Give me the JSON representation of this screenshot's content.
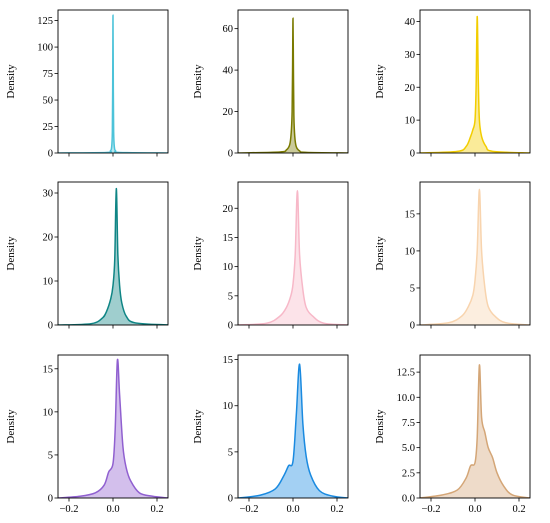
{
  "chart_data": [
    {
      "type": "area",
      "ylabel": "Density",
      "xlim": [
        -0.25,
        0.25
      ],
      "ylim": [
        0,
        135
      ],
      "yticks": [
        0,
        25,
        50,
        75,
        100,
        125
      ],
      "xticks": [
        -0.2,
        0.0,
        0.2
      ],
      "xtick_labels": [],
      "color": "#4cc3d9",
      "x": [
        -0.25,
        -0.03,
        -0.012,
        -0.006,
        -0.003,
        -0.0015,
        0,
        0.0015,
        0.003,
        0.006,
        0.012,
        0.03,
        0.25
      ],
      "y": [
        0,
        0.5,
        2,
        6,
        20,
        60,
        130,
        60,
        20,
        6,
        2,
        0.5,
        0
      ]
    },
    {
      "type": "area",
      "ylabel": "Density",
      "xlim": [
        -0.25,
        0.25
      ],
      "ylim": [
        0,
        69
      ],
      "yticks": [
        0,
        20,
        40,
        60
      ],
      "xticks": [
        -0.2,
        0.0,
        0.2
      ],
      "xtick_labels": [],
      "color": "#7a7a00",
      "x": [
        -0.25,
        -0.06,
        -0.03,
        -0.015,
        -0.008,
        -0.004,
        -0.002,
        0,
        0.002,
        0.004,
        0.008,
        0.015,
        0.03,
        0.06,
        0.25
      ],
      "y": [
        0,
        0.5,
        1.5,
        4,
        10,
        20,
        40,
        65,
        40,
        18,
        8,
        3,
        1,
        0.3,
        0
      ]
    },
    {
      "type": "area",
      "ylabel": "Density",
      "xlim": [
        -0.25,
        0.25
      ],
      "ylim": [
        0,
        43.5
      ],
      "yticks": [
        0,
        10,
        20,
        30,
        40
      ],
      "xticks": [
        -0.2,
        0.0,
        0.2
      ],
      "xtick_labels": [],
      "color": "#f2cd00",
      "x": [
        -0.25,
        -0.08,
        -0.04,
        -0.02,
        -0.01,
        0,
        0.005,
        0.01,
        0.015,
        0.02,
        0.03,
        0.05,
        0.08,
        0.25
      ],
      "y": [
        0,
        0.5,
        2,
        5,
        7,
        10,
        20,
        41.5,
        22,
        10,
        5,
        2,
        0.5,
        0
      ]
    },
    {
      "type": "area",
      "ylabel": "Density",
      "xlim": [
        -0.25,
        0.25
      ],
      "ylim": [
        0,
        32.5
      ],
      "yticks": [
        0,
        10,
        20,
        30
      ],
      "xticks": [
        -0.2,
        0.0,
        0.2
      ],
      "xtick_labels": [],
      "color": "#0f8585",
      "x": [
        -0.25,
        -0.1,
        -0.05,
        -0.03,
        -0.01,
        0,
        0.008,
        0.015,
        0.022,
        0.03,
        0.04,
        0.06,
        0.1,
        0.25
      ],
      "y": [
        0,
        0.3,
        1.5,
        3,
        6,
        9,
        15,
        31,
        16,
        9,
        5,
        2,
        0.5,
        0
      ]
    },
    {
      "type": "area",
      "ylabel": "Density",
      "xlim": [
        -0.25,
        0.25
      ],
      "ylim": [
        0,
        24.5
      ],
      "yticks": [
        0,
        5,
        10,
        15,
        20
      ],
      "xticks": [
        -0.2,
        0.0,
        0.2
      ],
      "xtick_labels": [],
      "color": "#f7b8c8",
      "x": [
        -0.25,
        -0.12,
        -0.06,
        -0.03,
        -0.01,
        0,
        0.01,
        0.02,
        0.03,
        0.045,
        0.06,
        0.09,
        0.14,
        0.25
      ],
      "y": [
        0,
        0.3,
        1.5,
        3,
        5,
        7,
        12,
        23,
        12,
        6,
        3,
        1.5,
        0.3,
        0
      ]
    },
    {
      "type": "area",
      "ylabel": "Density",
      "xlim": [
        -0.25,
        0.25
      ],
      "ylim": [
        0,
        19.3
      ],
      "yticks": [
        0,
        5,
        10,
        15
      ],
      "xticks": [
        -0.2,
        0.0,
        0.2
      ],
      "xtick_labels": [],
      "color": "#f8d4ae",
      "x": [
        -0.25,
        -0.12,
        -0.06,
        -0.03,
        -0.01,
        0,
        0.01,
        0.02,
        0.03,
        0.045,
        0.06,
        0.09,
        0.14,
        0.25
      ],
      "y": [
        0,
        0.3,
        1.2,
        2.5,
        4,
        6,
        10,
        18.3,
        10,
        5,
        2.5,
        1.2,
        0.3,
        0
      ]
    },
    {
      "type": "area",
      "ylabel": "Density",
      "xlim": [
        -0.25,
        0.25
      ],
      "ylim": [
        0,
        16.6
      ],
      "yticks": [
        0,
        5,
        10,
        15
      ],
      "xticks": [
        -0.2,
        0.0,
        0.2
      ],
      "xtick_labels": [
        "−0.2",
        "0.0",
        "0.2"
      ],
      "color": "#9060d0",
      "x": [
        -0.25,
        -0.15,
        -0.08,
        -0.04,
        -0.02,
        0,
        0.01,
        0.02,
        0.03,
        0.045,
        0.06,
        0.08,
        0.12,
        0.18,
        0.25
      ],
      "y": [
        0,
        0.2,
        0.6,
        1.5,
        3,
        4,
        8,
        16,
        12,
        6,
        3.5,
        2,
        0.6,
        0.2,
        0
      ]
    },
    {
      "type": "area",
      "ylabel": "Density",
      "xlim": [
        -0.25,
        0.25
      ],
      "ylim": [
        0,
        15.5
      ],
      "yticks": [
        0,
        5,
        10,
        15
      ],
      "xticks": [
        -0.2,
        0.0,
        0.2
      ],
      "xtick_labels": [
        "−0.2",
        "0.0",
        "0.2"
      ],
      "color": "#1a8ae0",
      "x": [
        -0.25,
        -0.15,
        -0.08,
        -0.04,
        -0.02,
        0,
        0.015,
        0.03,
        0.045,
        0.06,
        0.08,
        0.12,
        0.18,
        0.25
      ],
      "y": [
        0,
        0.3,
        1,
        2.5,
        3.5,
        4,
        9,
        14.5,
        8,
        4.5,
        2.5,
        0.8,
        0.2,
        0
      ]
    },
    {
      "type": "area",
      "ylabel": "Density",
      "xlim": [
        -0.25,
        0.25
      ],
      "ylim": [
        0,
        14.2
      ],
      "yticks": [
        0,
        2.5,
        5,
        7.5,
        10,
        12.5
      ],
      "ytick_labels": [
        "0.0",
        "2.5",
        "5.0",
        "7.5",
        "10.0",
        "12.5"
      ],
      "xticks": [
        -0.2,
        0.0,
        0.2
      ],
      "xtick_labels": [
        "−0.2",
        "0.0",
        "0.2"
      ],
      "color": "#d4a677",
      "x": [
        -0.25,
        -0.15,
        -0.08,
        -0.04,
        -0.02,
        0,
        0.01,
        0.02,
        0.03,
        0.045,
        0.06,
        0.08,
        0.1,
        0.13,
        0.17,
        0.25
      ],
      "y": [
        0,
        0.3,
        0.8,
        2,
        3.2,
        3.5,
        6,
        13.2,
        8,
        6.5,
        5,
        4,
        2.5,
        1.2,
        0.3,
        0
      ]
    }
  ]
}
